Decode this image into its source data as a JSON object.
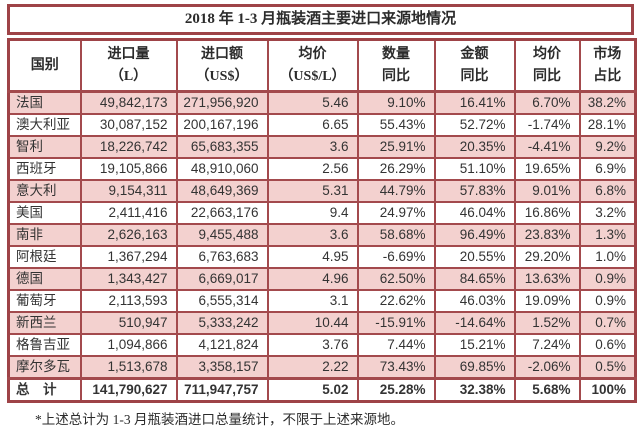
{
  "title": "2018 年 1-3 月瓶装酒主要进口来源地情况",
  "table": {
    "columns": [
      {
        "id": "country",
        "line1": "国别",
        "line2": ""
      },
      {
        "id": "volume",
        "line1": "进口量",
        "line2": "（L）"
      },
      {
        "id": "value",
        "line1": "进口额",
        "line2": "（US$）"
      },
      {
        "id": "avg-price",
        "line1": "均价",
        "line2": "（US$/L）"
      },
      {
        "id": "qty-yoy",
        "line1": "数量",
        "line2": "同比"
      },
      {
        "id": "amount-yoy",
        "line1": "金额",
        "line2": "同比"
      },
      {
        "id": "price-yoy",
        "line1": "均价",
        "line2": "同比"
      },
      {
        "id": "share",
        "line1": "市场",
        "line2": "占比"
      }
    ],
    "rows": [
      [
        "法国",
        "49,842,173",
        "271,956,920",
        "5.46",
        "9.10%",
        "16.41%",
        "6.70%",
        "38.2%"
      ],
      [
        "澳大利亚",
        "30,087,152",
        "200,167,196",
        "6.65",
        "55.43%",
        "52.72%",
        "-1.74%",
        "28.1%"
      ],
      [
        "智利",
        "18,226,742",
        "65,683,355",
        "3.6",
        "25.91%",
        "20.35%",
        "-4.41%",
        "9.2%"
      ],
      [
        "西班牙",
        "19,105,866",
        "48,910,060",
        "2.56",
        "26.29%",
        "51.10%",
        "19.65%",
        "6.9%"
      ],
      [
        "意大利",
        "9,154,311",
        "48,649,369",
        "5.31",
        "44.79%",
        "57.83%",
        "9.01%",
        "6.8%"
      ],
      [
        "美国",
        "2,411,416",
        "22,663,176",
        "9.4",
        "24.97%",
        "46.04%",
        "16.86%",
        "3.2%"
      ],
      [
        "南非",
        "2,626,163",
        "9,455,488",
        "3.6",
        "58.68%",
        "96.49%",
        "23.83%",
        "1.3%"
      ],
      [
        "阿根廷",
        "1,367,294",
        "6,763,683",
        "4.95",
        "-6.69%",
        "20.55%",
        "29.20%",
        "1.0%"
      ],
      [
        "德国",
        "1,343,427",
        "6,669,017",
        "4.96",
        "62.50%",
        "84.65%",
        "13.63%",
        "0.9%"
      ],
      [
        "葡萄牙",
        "2,113,593",
        "6,555,314",
        "3.1",
        "22.62%",
        "46.03%",
        "19.09%",
        "0.9%"
      ],
      [
        "新西兰",
        "510,947",
        "5,333,242",
        "10.44",
        "-15.91%",
        "-14.64%",
        "1.52%",
        "0.7%"
      ],
      [
        "格鲁吉亚",
        "1,094,866",
        "4,121,824",
        "3.76",
        "7.44%",
        "15.21%",
        "7.24%",
        "0.6%"
      ],
      [
        "摩尔多瓦",
        "1,513,678",
        "3,358,157",
        "2.22",
        "73.43%",
        "69.85%",
        "-2.06%",
        "0.5%"
      ]
    ],
    "total_row": [
      "总　计",
      "141,790,627",
      "711,947,757",
      "5.02",
      "25.28%",
      "32.38%",
      "5.68%",
      "100%"
    ]
  },
  "footnote": "*上述总计为 1-3 月瓶装酒进口总量统计，不限于上述来源地。",
  "colors": {
    "border": "#a34a4d",
    "outer_border": "#9e4347",
    "row_pink": "#f3d1cf",
    "row_white": "#ffffff",
    "text": "#333333"
  }
}
